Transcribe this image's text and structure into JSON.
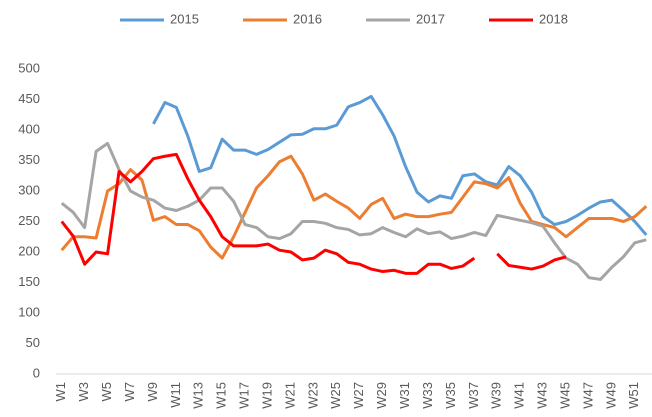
{
  "chart_data": {
    "type": "line",
    "categories": [
      "W1",
      null,
      "W3",
      null,
      "W5",
      null,
      "W7",
      null,
      "W9",
      null,
      "W11",
      null,
      "W13",
      null,
      "W15",
      null,
      "W17",
      null,
      "W19",
      null,
      "W21",
      null,
      "W23",
      null,
      "W25",
      null,
      "W27",
      null,
      "W29",
      null,
      "W31",
      null,
      "W33",
      null,
      "W35",
      null,
      "W37",
      null,
      "W39",
      null,
      "W41",
      null,
      "W43",
      null,
      "W45",
      null,
      "W47",
      null,
      "W49",
      null,
      "W51",
      null
    ],
    "series": [
      {
        "name": "2015",
        "color": "#5b9bd5",
        "values": [
          null,
          null,
          null,
          null,
          null,
          null,
          null,
          null,
          410,
          445,
          437,
          390,
          332,
          338,
          385,
          367,
          367,
          360,
          368,
          380,
          392,
          393,
          402,
          402,
          408,
          438,
          445,
          455,
          425,
          390,
          340,
          298,
          282,
          292,
          288,
          325,
          328,
          315,
          310,
          340,
          325,
          298,
          258,
          245,
          250,
          260,
          272,
          282,
          285,
          268,
          250,
          228
        ]
      },
      {
        "name": "2016",
        "color": "#ed7d31",
        "values": [
          203,
          225,
          225,
          223,
          300,
          312,
          335,
          318,
          252,
          258,
          245,
          245,
          235,
          208,
          190,
          225,
          265,
          305,
          325,
          348,
          357,
          328,
          285,
          295,
          283,
          272,
          255,
          278,
          288,
          255,
          262,
          258,
          258,
          262,
          265,
          290,
          315,
          312,
          305,
          322,
          280,
          250,
          245,
          240,
          225,
          240,
          255,
          255,
          255,
          250,
          258,
          275
        ]
      },
      {
        "name": "2017",
        "color": "#a5a5a5",
        "values": [
          280,
          265,
          240,
          365,
          378,
          335,
          300,
          290,
          285,
          272,
          268,
          275,
          285,
          305,
          305,
          283,
          245,
          240,
          225,
          222,
          230,
          250,
          250,
          247,
          240,
          237,
          228,
          230,
          240,
          232,
          225,
          238,
          230,
          233,
          222,
          226,
          232,
          227,
          260,
          256,
          252,
          248,
          242,
          215,
          190,
          180,
          158,
          155,
          175,
          192,
          215,
          220
        ]
      },
      {
        "name": "2018",
        "color": "#ff0000",
        "values": [
          250,
          226,
          180,
          200,
          197,
          332,
          315,
          332,
          353,
          357,
          360,
          320,
          285,
          258,
          225,
          210,
          210,
          210,
          213,
          203,
          200,
          187,
          190,
          203,
          197,
          183,
          180,
          172,
          168,
          170,
          165,
          165,
          180,
          180,
          173,
          177,
          190,
          null,
          197,
          178,
          175,
          172,
          177,
          187,
          192,
          null,
          null,
          null,
          null,
          null,
          null,
          null
        ]
      }
    ],
    "ylim": [
      0,
      500
    ],
    "yticks": [
      0,
      50,
      100,
      150,
      200,
      250,
      300,
      350,
      400,
      450,
      500
    ],
    "grid": false,
    "legend": "top"
  }
}
